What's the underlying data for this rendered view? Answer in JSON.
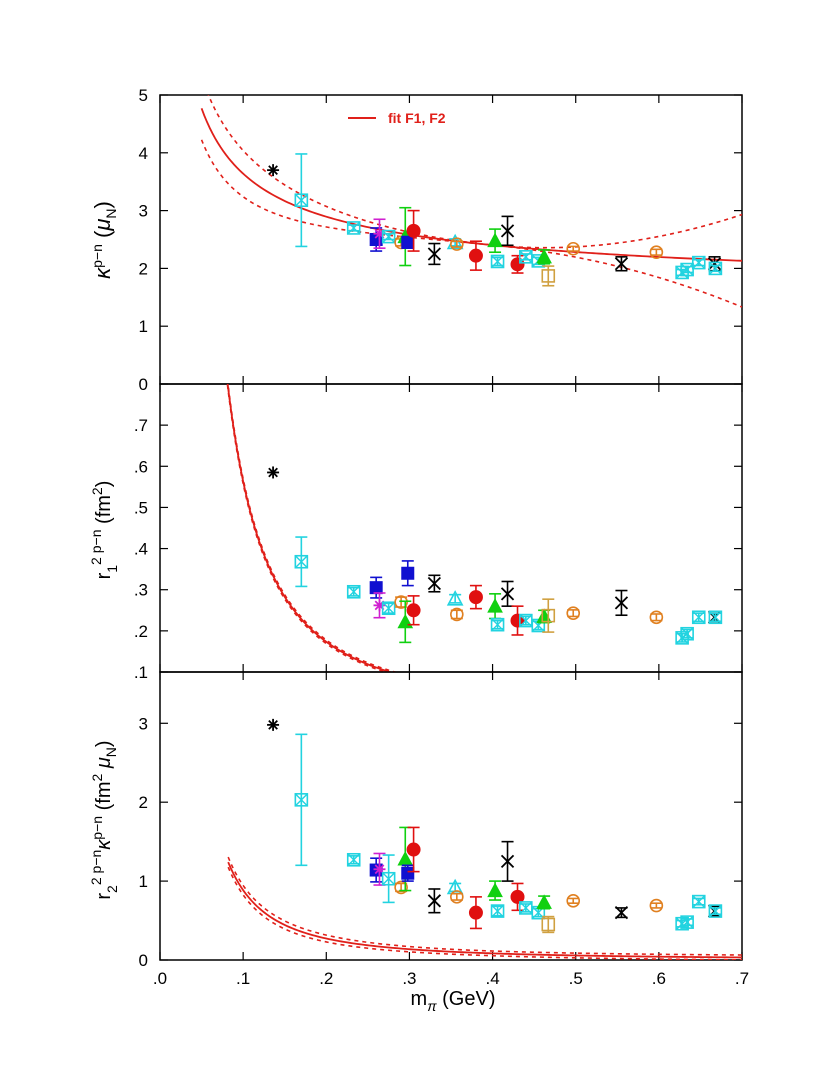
{
  "chart_data": {
    "type": "scatter",
    "title": "",
    "xlabel": "m",
    "xlabel_sub": "π",
    "xlabel_unit": " (GeV)",
    "xlim": [
      0,
      0.7
    ],
    "x_ticks": [
      {
        "v": 0.0,
        "label": ".0"
      },
      {
        "v": 0.1,
        "label": ".1"
      },
      {
        "v": 0.2,
        "label": ".2"
      },
      {
        "v": 0.3,
        "label": ".3"
      },
      {
        "v": 0.4,
        "label": ".4"
      },
      {
        "v": 0.5,
        "label": ".5"
      },
      {
        "v": 0.6,
        "label": ".6"
      },
      {
        "v": 0.7,
        "label": ".7"
      }
    ],
    "legend": {
      "label": "fit F1, F2",
      "color": "#e0201a",
      "placement": "top-center"
    },
    "colors": {
      "fit": "#e0201a",
      "cyan": "#22d3e0",
      "blue": "#1010d0",
      "magenta": "#d020d0",
      "green": "#10d010",
      "red": "#e01010",
      "orange": "#e08020",
      "gold": "#d0a040",
      "black": "#000000"
    },
    "panels": [
      {
        "ylabel": "κ^{p-n} (μ_N)",
        "ylim": [
          0,
          5
        ],
        "y_ticks": [
          {
            "v": 0,
            "label": "0"
          },
          {
            "v": 1,
            "label": "1"
          },
          {
            "v": 2,
            "label": "2"
          },
          {
            "v": 3,
            "label": "3"
          },
          {
            "v": 4,
            "label": "4"
          },
          {
            "v": 5,
            "label": "5"
          }
        ],
        "fit": {
          "amp": 0.55,
          "exp": -0.6,
          "const": 1.45,
          "band": [
            0.4,
            2.0
          ],
          "x_start": 0.05
        },
        "points": [
          {
            "x": 0.136,
            "y": 3.7,
            "m": "star",
            "c": "black"
          },
          {
            "x": 0.17,
            "y": 3.18,
            "e": 0.8,
            "m": "sqx",
            "c": "cyan"
          },
          {
            "x": 0.233,
            "y": 2.7,
            "e": 0.05,
            "m": "sqx",
            "c": "cyan"
          },
          {
            "x": 0.26,
            "y": 2.5,
            "e": 0.2,
            "m": "sqf",
            "c": "blue"
          },
          {
            "x": 0.264,
            "y": 2.6,
            "e": 0.25,
            "m": "star",
            "c": "magenta"
          },
          {
            "x": 0.275,
            "y": 2.55,
            "e": 0.05,
            "m": "sqx",
            "c": "cyan"
          },
          {
            "x": 0.29,
            "y": 2.45,
            "e": 0.06,
            "m": "circ",
            "c": "orange"
          },
          {
            "x": 0.295,
            "y": 2.55,
            "e": 0.5,
            "m": "trif",
            "c": "green"
          },
          {
            "x": 0.298,
            "y": 2.45,
            "e": 0.1,
            "m": "sqf",
            "c": "blue"
          },
          {
            "x": 0.305,
            "y": 2.65,
            "e": 0.35,
            "m": "circf",
            "c": "red"
          },
          {
            "x": 0.33,
            "y": 2.25,
            "e": 0.18,
            "m": "xb",
            "c": "black"
          },
          {
            "x": 0.355,
            "y": 2.45,
            "e": 0.06,
            "m": "tri",
            "c": "cyan"
          },
          {
            "x": 0.357,
            "y": 2.42,
            "e": 0.05,
            "m": "circ",
            "c": "orange"
          },
          {
            "x": 0.38,
            "y": 2.22,
            "e": 0.25,
            "m": "circf",
            "c": "red"
          },
          {
            "x": 0.403,
            "y": 2.48,
            "e": 0.2,
            "m": "trif",
            "c": "green"
          },
          {
            "x": 0.406,
            "y": 2.12,
            "e": 0.07,
            "m": "sqx",
            "c": "cyan"
          },
          {
            "x": 0.418,
            "y": 2.65,
            "e": 0.25,
            "m": "xb",
            "c": "black"
          },
          {
            "x": 0.43,
            "y": 2.07,
            "e": 0.15,
            "m": "circf",
            "c": "red"
          },
          {
            "x": 0.44,
            "y": 2.2,
            "e": 0.05,
            "m": "sqx",
            "c": "cyan"
          },
          {
            "x": 0.455,
            "y": 2.13,
            "e": 0.06,
            "m": "sqx",
            "c": "cyan"
          },
          {
            "x": 0.462,
            "y": 2.2,
            "e": 0.12,
            "m": "trif",
            "c": "green"
          },
          {
            "x": 0.467,
            "y": 1.87,
            "e": 0.17,
            "m": "sq",
            "c": "gold"
          },
          {
            "x": 0.497,
            "y": 2.34,
            "e": 0.04,
            "m": "circ",
            "c": "orange"
          },
          {
            "x": 0.555,
            "y": 2.08,
            "e": 0.12,
            "m": "xb",
            "c": "black"
          },
          {
            "x": 0.597,
            "y": 2.28,
            "e": 0.05,
            "m": "circ",
            "c": "orange"
          },
          {
            "x": 0.628,
            "y": 1.93,
            "e": 0.05,
            "m": "sqx",
            "c": "cyan"
          },
          {
            "x": 0.634,
            "y": 1.98,
            "e": 0.05,
            "m": "sqx",
            "c": "cyan"
          },
          {
            "x": 0.648,
            "y": 2.1,
            "e": 0.05,
            "m": "sqx",
            "c": "cyan"
          },
          {
            "x": 0.667,
            "y": 2.08,
            "e": 0.12,
            "m": "xb",
            "c": "black"
          },
          {
            "x": 0.668,
            "y": 2.0,
            "e": 0.05,
            "m": "sqx",
            "c": "cyan"
          }
        ]
      },
      {
        "ylabel": "r_1^{2 p-n} (fm^2)",
        "ylim": [
          0.1,
          0.8
        ],
        "y_ticks": [
          {
            "v": 0.1,
            "label": ".1"
          },
          {
            "v": 0.2,
            "label": ".2"
          },
          {
            "v": 0.3,
            "label": ".3"
          },
          {
            "v": 0.4,
            "label": ".4"
          },
          {
            "v": 0.5,
            "label": ".5"
          },
          {
            "v": 0.6,
            "label": ".6"
          },
          {
            "v": 0.7,
            "label": ".7"
          }
        ],
        "fit": {
          "amp": 0.01124,
          "exp": -1.7,
          "const": 0.0,
          "band": [
            0.003,
            0.003
          ],
          "x_start": 0.08
        },
        "points": [
          {
            "x": 0.136,
            "y": 0.585,
            "m": "star",
            "c": "black"
          },
          {
            "x": 0.17,
            "y": 0.368,
            "e": 0.06,
            "m": "sqx",
            "c": "cyan"
          },
          {
            "x": 0.233,
            "y": 0.295,
            "e": 0.01,
            "m": "sqx",
            "c": "cyan"
          },
          {
            "x": 0.26,
            "y": 0.305,
            "e": 0.025,
            "m": "sqf",
            "c": "blue"
          },
          {
            "x": 0.264,
            "y": 0.262,
            "e": 0.03,
            "m": "star",
            "c": "magenta"
          },
          {
            "x": 0.275,
            "y": 0.255,
            "e": 0.012,
            "m": "sqx",
            "c": "cyan"
          },
          {
            "x": 0.29,
            "y": 0.27,
            "e": 0.012,
            "m": "circ",
            "c": "orange"
          },
          {
            "x": 0.295,
            "y": 0.222,
            "e": 0.05,
            "m": "trif",
            "c": "green"
          },
          {
            "x": 0.298,
            "y": 0.34,
            "e": 0.03,
            "m": "sqf",
            "c": "blue"
          },
          {
            "x": 0.305,
            "y": 0.25,
            "e": 0.035,
            "m": "circf",
            "c": "red"
          },
          {
            "x": 0.33,
            "y": 0.315,
            "e": 0.02,
            "m": "xb",
            "c": "black"
          },
          {
            "x": 0.355,
            "y": 0.278,
            "e": 0.01,
            "m": "tri",
            "c": "cyan"
          },
          {
            "x": 0.357,
            "y": 0.24,
            "e": 0.01,
            "m": "circ",
            "c": "orange"
          },
          {
            "x": 0.38,
            "y": 0.282,
            "e": 0.028,
            "m": "circf",
            "c": "red"
          },
          {
            "x": 0.403,
            "y": 0.26,
            "e": 0.03,
            "m": "trif",
            "c": "green"
          },
          {
            "x": 0.406,
            "y": 0.215,
            "e": 0.01,
            "m": "sqx",
            "c": "cyan"
          },
          {
            "x": 0.418,
            "y": 0.29,
            "e": 0.03,
            "m": "xb",
            "c": "black"
          },
          {
            "x": 0.43,
            "y": 0.225,
            "e": 0.035,
            "m": "circf",
            "c": "red"
          },
          {
            "x": 0.44,
            "y": 0.225,
            "e": 0.01,
            "m": "sqx",
            "c": "cyan"
          },
          {
            "x": 0.455,
            "y": 0.213,
            "e": 0.01,
            "m": "sqx",
            "c": "cyan"
          },
          {
            "x": 0.462,
            "y": 0.235,
            "e": 0.015,
            "m": "trif",
            "c": "green"
          },
          {
            "x": 0.467,
            "y": 0.237,
            "e": 0.04,
            "m": "sq",
            "c": "gold"
          },
          {
            "x": 0.497,
            "y": 0.243,
            "e": 0.008,
            "m": "circ",
            "c": "orange"
          },
          {
            "x": 0.555,
            "y": 0.268,
            "e": 0.03,
            "m": "xb",
            "c": "black"
          },
          {
            "x": 0.597,
            "y": 0.233,
            "e": 0.008,
            "m": "circ",
            "c": "orange"
          },
          {
            "x": 0.628,
            "y": 0.183,
            "e": 0.01,
            "m": "sqx",
            "c": "cyan"
          },
          {
            "x": 0.634,
            "y": 0.193,
            "e": 0.01,
            "m": "sqx",
            "c": "cyan"
          },
          {
            "x": 0.648,
            "y": 0.233,
            "e": 0.01,
            "m": "sqx",
            "c": "cyan"
          },
          {
            "x": 0.667,
            "y": 0.233,
            "e": 0.01,
            "m": "xb",
            "c": "black"
          },
          {
            "x": 0.668,
            "y": 0.233,
            "e": 0.01,
            "m": "sqx",
            "c": "cyan"
          }
        ]
      },
      {
        "ylabel": "r_2^{2 p-n} κ^{p-n} (fm^2 μ_N)",
        "ylim": [
          0,
          3.65
        ],
        "y_ticks": [
          {
            "v": 0,
            "label": "0"
          },
          {
            "v": 1,
            "label": "1"
          },
          {
            "v": 2,
            "label": "2"
          },
          {
            "v": 3,
            "label": "3"
          }
        ],
        "fit": {
          "amp": 0.01766,
          "exp": -1.7,
          "const": 0.0,
          "band": [
            0.03,
            0.03
          ],
          "x_start": 0.082
        },
        "points": [
          {
            "x": 0.136,
            "y": 2.98,
            "m": "star",
            "c": "black"
          },
          {
            "x": 0.17,
            "y": 2.03,
            "e": 0.83,
            "m": "sqx",
            "c": "cyan"
          },
          {
            "x": 0.233,
            "y": 1.27,
            "e": 0.05,
            "m": "sqx",
            "c": "cyan"
          },
          {
            "x": 0.26,
            "y": 1.14,
            "e": 0.15,
            "m": "sqf",
            "c": "blue"
          },
          {
            "x": 0.264,
            "y": 1.15,
            "e": 0.2,
            "m": "star",
            "c": "magenta"
          },
          {
            "x": 0.275,
            "y": 1.03,
            "e": 0.3,
            "m": "sqx",
            "c": "cyan"
          },
          {
            "x": 0.29,
            "y": 0.92,
            "e": 0.05,
            "m": "circ",
            "c": "orange"
          },
          {
            "x": 0.295,
            "y": 1.28,
            "e": 0.4,
            "m": "trif",
            "c": "green"
          },
          {
            "x": 0.298,
            "y": 1.1,
            "e": 0.1,
            "m": "sqf",
            "c": "blue"
          },
          {
            "x": 0.305,
            "y": 1.4,
            "e": 0.28,
            "m": "circf",
            "c": "red"
          },
          {
            "x": 0.33,
            "y": 0.75,
            "e": 0.15,
            "m": "xb",
            "c": "black"
          },
          {
            "x": 0.355,
            "y": 0.92,
            "e": 0.05,
            "m": "tri",
            "c": "cyan"
          },
          {
            "x": 0.357,
            "y": 0.8,
            "e": 0.04,
            "m": "circ",
            "c": "orange"
          },
          {
            "x": 0.38,
            "y": 0.6,
            "e": 0.2,
            "m": "circf",
            "c": "red"
          },
          {
            "x": 0.403,
            "y": 0.88,
            "e": 0.12,
            "m": "trif",
            "c": "green"
          },
          {
            "x": 0.406,
            "y": 0.62,
            "e": 0.06,
            "m": "sqx",
            "c": "cyan"
          },
          {
            "x": 0.418,
            "y": 1.25,
            "e": 0.25,
            "m": "xb",
            "c": "black"
          },
          {
            "x": 0.43,
            "y": 0.8,
            "e": 0.17,
            "m": "circf",
            "c": "red"
          },
          {
            "x": 0.44,
            "y": 0.66,
            "e": 0.05,
            "m": "sqx",
            "c": "cyan"
          },
          {
            "x": 0.455,
            "y": 0.6,
            "e": 0.05,
            "m": "sqx",
            "c": "cyan"
          },
          {
            "x": 0.462,
            "y": 0.73,
            "e": 0.08,
            "m": "trif",
            "c": "green"
          },
          {
            "x": 0.467,
            "y": 0.45,
            "e": 0.1,
            "m": "sq",
            "c": "gold"
          },
          {
            "x": 0.497,
            "y": 0.75,
            "e": 0.03,
            "m": "circ",
            "c": "orange"
          },
          {
            "x": 0.555,
            "y": 0.6,
            "e": 0.06,
            "m": "xb",
            "c": "black"
          },
          {
            "x": 0.597,
            "y": 0.69,
            "e": 0.03,
            "m": "circ",
            "c": "orange"
          },
          {
            "x": 0.628,
            "y": 0.46,
            "e": 0.04,
            "m": "sqx",
            "c": "cyan"
          },
          {
            "x": 0.634,
            "y": 0.48,
            "e": 0.04,
            "m": "sqx",
            "c": "cyan"
          },
          {
            "x": 0.648,
            "y": 0.74,
            "e": 0.04,
            "m": "sqx",
            "c": "cyan"
          },
          {
            "x": 0.667,
            "y": 0.62,
            "e": 0.06,
            "m": "xb",
            "c": "black"
          },
          {
            "x": 0.668,
            "y": 0.62,
            "e": 0.04,
            "m": "sqx",
            "c": "cyan"
          }
        ]
      }
    ]
  }
}
